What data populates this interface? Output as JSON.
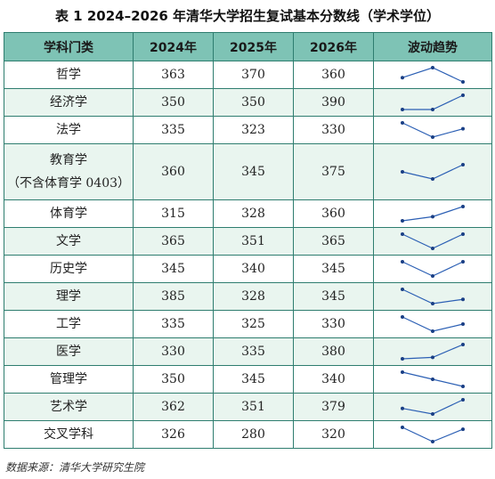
{
  "title": "表 1  2024–2026 年清华大学招生复试基本分数线（学术学位）",
  "headers": [
    "学科门类",
    "2024年",
    "2025年",
    "2026年",
    "波动趋势"
  ],
  "rows": [
    {
      "subject": "哲学",
      "y2024": "363",
      "y2025": "370",
      "y2026": "360"
    },
    {
      "subject": "经济学",
      "y2024": "350",
      "y2025": "350",
      "y2026": "390"
    },
    {
      "subject": "法学",
      "y2024": "335",
      "y2025": "323",
      "y2026": "330"
    },
    {
      "subject": "教育学",
      "subject_note": "（不含体育学 0403）",
      "y2024": "360",
      "y2025": "345",
      "y2026": "375"
    },
    {
      "subject": "体育学",
      "y2024": "315",
      "y2025": "328",
      "y2026": "360"
    },
    {
      "subject": "文学",
      "y2024": "365",
      "y2025": "351",
      "y2026": "365"
    },
    {
      "subject": "历史学",
      "y2024": "345",
      "y2025": "340",
      "y2026": "345"
    },
    {
      "subject": "理学",
      "y2024": "385",
      "y2025": "328",
      "y2026": "345"
    },
    {
      "subject": "工学",
      "y2024": "335",
      "y2025": "325",
      "y2026": "330"
    },
    {
      "subject": "医学",
      "y2024": "330",
      "y2025": "335",
      "y2026": "380"
    },
    {
      "subject": "管理学",
      "y2024": "350",
      "y2025": "345",
      "y2026": "340"
    },
    {
      "subject": "艺术学",
      "y2024": "362",
      "y2025": "351",
      "y2026": "379"
    },
    {
      "subject": "交叉学科",
      "y2024": "326",
      "y2025": "280",
      "y2026": "320"
    }
  ],
  "source": "数据来源：清华大学研究生院",
  "colors": {
    "header_bg": "#7ec3b5",
    "alt_row": "#e9f5ef",
    "border": "#2e7d6f",
    "sparkline": "#2b5fb4"
  }
}
